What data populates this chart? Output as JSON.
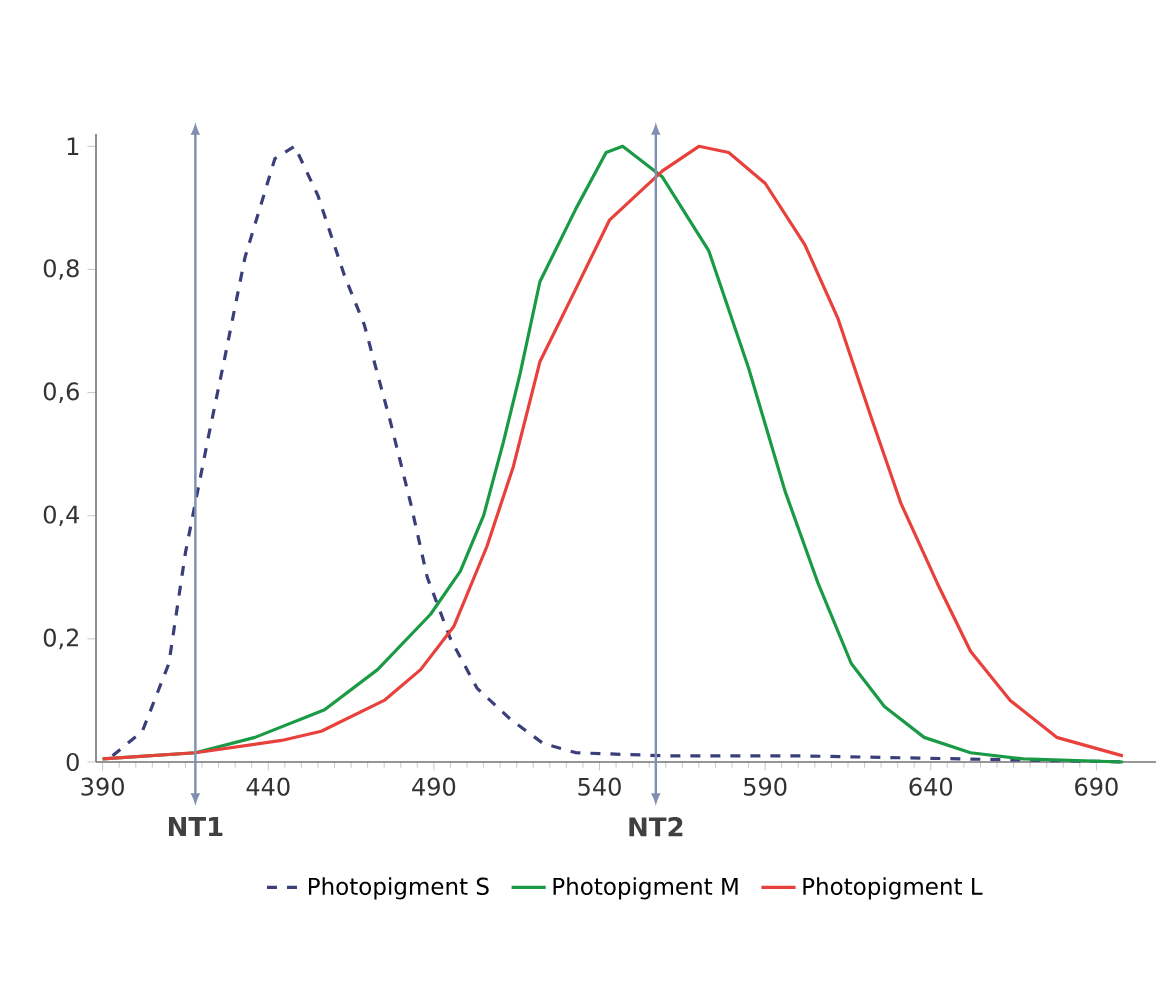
{
  "chart_data": {
    "type": "line",
    "xlim": [
      388,
      708
    ],
    "ylim": [
      0,
      1.02
    ],
    "xticks": [
      390,
      440,
      490,
      540,
      590,
      640,
      690
    ],
    "yticks": [
      0,
      {
        "value": 0.2,
        "label": "0,2"
      },
      {
        "value": 0.4,
        "label": "0,4"
      },
      {
        "value": 0.6,
        "label": "0,6"
      },
      {
        "value": 0.8,
        "label": "0,8"
      },
      1
    ],
    "legend": "bottom",
    "series": [
      {
        "name": "Photopigment S",
        "color": "#3a3f7a",
        "line_style": "dashed",
        "x": [
          393,
          402,
          410,
          415,
          422,
          427,
          433,
          442,
          448,
          455,
          463,
          469,
          477,
          483,
          488,
          495,
          503,
          513,
          523,
          533,
          560,
          600,
          650,
          700
        ],
        "values": [
          0.01,
          0.05,
          0.16,
          0.34,
          0.53,
          0.66,
          0.82,
          0.98,
          1.0,
          0.92,
          0.79,
          0.71,
          0.55,
          0.42,
          0.3,
          0.2,
          0.12,
          0.07,
          0.03,
          0.015,
          0.01,
          0.01,
          0.005,
          0
        ]
      },
      {
        "name": "Photopigment M",
        "color": "#1a9a45",
        "line_style": "solid",
        "x": [
          390,
          418,
          436,
          457,
          473,
          489,
          498,
          505,
          511,
          516,
          522,
          533,
          542,
          547,
          559,
          573,
          585,
          596,
          606,
          616,
          626,
          638,
          652,
          668,
          698
        ],
        "values": [
          0.005,
          0.015,
          0.04,
          0.085,
          0.15,
          0.24,
          0.31,
          0.4,
          0.52,
          0.63,
          0.78,
          0.9,
          0.99,
          1.0,
          0.95,
          0.83,
          0.64,
          0.44,
          0.29,
          0.16,
          0.09,
          0.04,
          0.015,
          0.005,
          0
        ]
      },
      {
        "name": "Photopigment L",
        "color": "#e8413c",
        "line_style": "solid",
        "x": [
          390,
          418,
          444,
          456,
          475,
          486,
          496,
          506,
          514,
          522,
          533,
          543,
          559,
          570,
          579,
          590,
          602,
          612,
          622,
          631,
          642,
          652,
          664,
          678,
          698
        ],
        "values": [
          0.005,
          0.015,
          0.035,
          0.05,
          0.1,
          0.15,
          0.22,
          0.35,
          0.48,
          0.65,
          0.77,
          0.88,
          0.96,
          1.0,
          0.99,
          0.94,
          0.84,
          0.72,
          0.56,
          0.42,
          0.29,
          0.18,
          0.1,
          0.04,
          0.01
        ]
      }
    ],
    "ref_lines": [
      {
        "axis": "x",
        "value": 418,
        "label": "NT1",
        "color": "#7f8fb0"
      },
      {
        "axis": "x",
        "value": 557,
        "label": "NT2",
        "color": "#7f8fb0"
      }
    ]
  }
}
